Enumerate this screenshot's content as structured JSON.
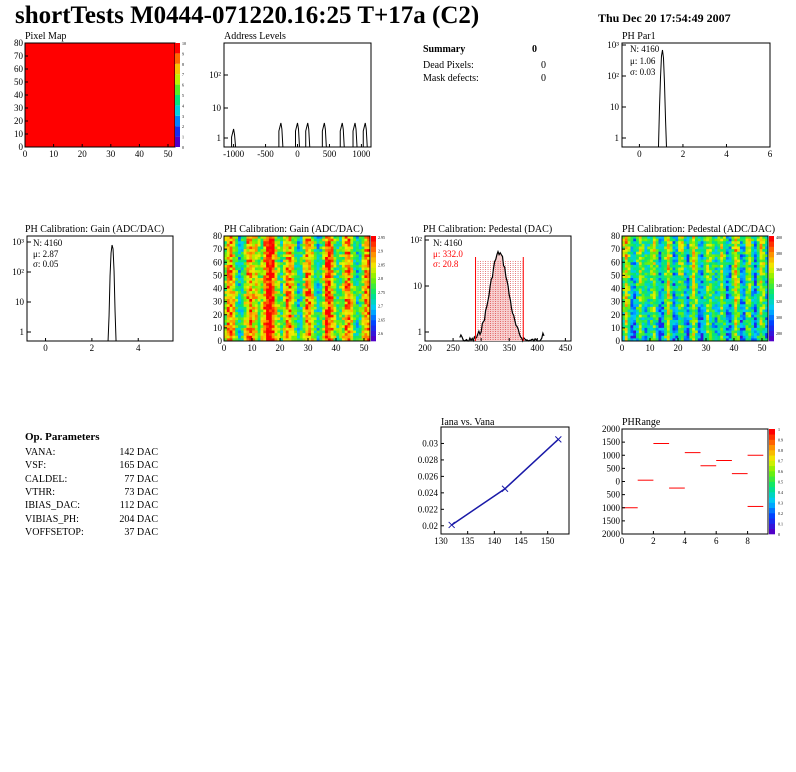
{
  "header": {
    "title": "shortTests M0444-071220.16:25 T+17a (C2)",
    "date": "Thu Dec 20 17:54:49 2007"
  },
  "summary": {
    "heading": "Summary",
    "count": "0",
    "rows": [
      {
        "label": "Dead Pixels:",
        "value": "0"
      },
      {
        "label": "Mask defects:",
        "value": "0"
      }
    ]
  },
  "op_params": {
    "heading": "Op. Parameters",
    "rows": [
      {
        "label": "VANA:",
        "value": "142 DAC"
      },
      {
        "label": "VSF:",
        "value": "165 DAC"
      },
      {
        "label": "CALDEL:",
        "value": "77 DAC"
      },
      {
        "label": "VTHR:",
        "value": "73 DAC"
      },
      {
        "label": "IBIAS_DAC:",
        "value": "112 DAC"
      },
      {
        "label": "VIBIAS_PH:",
        "value": "204 DAC"
      },
      {
        "label": "VOFFSETOP:",
        "value": "37 DAC"
      }
    ]
  },
  "chart_data": [
    {
      "type": "heatmap",
      "title": "Pixel Map",
      "xlim": [
        0,
        52
      ],
      "ylim": [
        0,
        80
      ],
      "x_ticks": [
        "0",
        "10",
        "20",
        "30",
        "40",
        "50"
      ],
      "y_ticks": [
        "0",
        "10",
        "20",
        "30",
        "40",
        "50",
        "60",
        "70",
        "80"
      ],
      "fill": "uniform",
      "colorbar_ticks": [
        "0",
        "1",
        "2",
        "3",
        "4",
        "5",
        "6",
        "7",
        "8",
        "9",
        "10"
      ]
    },
    {
      "type": "bar",
      "title": "Address Levels",
      "x_ticks": [
        "-1000",
        "-500",
        "0",
        "500",
        "1000"
      ],
      "xlim": [
        -1150,
        1150
      ],
      "y_scale": "log",
      "y_ticks": [
        "1",
        "10",
        "10²"
      ],
      "peaks_x": [
        -1000,
        -260,
        0,
        160,
        420,
        700,
        900,
        1060
      ]
    },
    {
      "type": "bar",
      "title": "PH Par1",
      "x_ticks": [
        "0",
        "2",
        "4",
        "6"
      ],
      "xlim": [
        -0.8,
        6
      ],
      "y_scale": "log",
      "y_ticks": [
        "1",
        "10",
        "10²",
        "10³"
      ],
      "stats": {
        "N": "N: 4160",
        "mu": "μ: 1.06",
        "sigma": "σ: 0.03"
      },
      "peak_x": 1.06
    },
    {
      "type": "bar",
      "title": "PH Calibration: Gain (ADC/DAC)",
      "x_ticks": [
        "0",
        "2",
        "4"
      ],
      "xlim": [
        -0.8,
        5.5
      ],
      "y_scale": "log",
      "y_ticks": [
        "1",
        "10",
        "10²",
        "10³"
      ],
      "stats": {
        "N": "N: 4160",
        "mu": "μ: 2.87",
        "sigma": "σ: 0.05"
      },
      "peak_x": 2.87
    },
    {
      "type": "heatmap",
      "title": "PH Calibration: Gain (ADC/DAC)",
      "xlim": [
        0,
        52
      ],
      "ylim": [
        0,
        80
      ],
      "x_ticks": [
        "0",
        "10",
        "20",
        "30",
        "40",
        "50"
      ],
      "y_ticks": [
        "0",
        "10",
        "20",
        "30",
        "40",
        "50",
        "60",
        "70",
        "80"
      ],
      "colorbar_ticks": [
        "2.6",
        "2.65",
        "2.7",
        "2.75",
        "2.8",
        "2.85",
        "2.9",
        "2.95"
      ]
    },
    {
      "type": "bar",
      "title": "PH Calibration: Pedestal (DAC)",
      "x_ticks": [
        "200",
        "250",
        "300",
        "350",
        "400",
        "450"
      ],
      "xlim": [
        200,
        460
      ],
      "y_scale": "log",
      "y_ticks": [
        "1",
        "10",
        "10²"
      ],
      "stats": {
        "N": "N: 4160",
        "mu": "μ: 332.0",
        "sigma": "σ: 20.8"
      },
      "cut_lines": [
        290,
        375
      ]
    },
    {
      "type": "heatmap",
      "title": "PH Calibration: Pedestal (ADC/DAC)",
      "xlim": [
        0,
        52
      ],
      "ylim": [
        0,
        80
      ],
      "x_ticks": [
        "0",
        "10",
        "20",
        "30",
        "40",
        "50"
      ],
      "y_ticks": [
        "0",
        "10",
        "20",
        "30",
        "40",
        "50",
        "60",
        "70",
        "80"
      ],
      "colorbar_ticks": [
        "280",
        "300",
        "320",
        "340",
        "360",
        "380",
        "400"
      ]
    },
    {
      "type": "line",
      "title": "Iana vs. Vana",
      "x": [
        132,
        142,
        152
      ],
      "y": [
        0.0201,
        0.0245,
        0.0305
      ],
      "xlim": [
        130,
        154
      ],
      "ylim": [
        0.019,
        0.032
      ],
      "x_ticks": [
        "130",
        "135",
        "140",
        "145",
        "150"
      ],
      "y_ticks": [
        "0.02",
        "0.022",
        "0.024",
        "0.026",
        "0.028",
        "0.03"
      ]
    },
    {
      "type": "scatter",
      "title": "PHRange",
      "x": [
        0,
        1,
        2,
        3,
        4,
        5,
        6,
        7,
        8
      ],
      "y": [
        -1000,
        50,
        1450,
        -250,
        1100,
        600,
        800,
        300,
        1000
      ],
      "extra": {
        "x": 8,
        "y": -950
      },
      "xlim": [
        0,
        9.3
      ],
      "ylim": [
        -2000,
        2000
      ],
      "x_ticks": [
        "0",
        "2",
        "4",
        "6",
        "8"
      ],
      "y_ticks": [
        "2000",
        "1500",
        "1000",
        "500",
        "0",
        "500",
        "1000",
        "1500",
        "2000"
      ],
      "colorbar_ticks": [
        "0",
        "0.1",
        "0.2",
        "0.3",
        "0.4",
        "0.5",
        "0.6",
        "0.7",
        "0.8",
        "0.9",
        "1"
      ]
    }
  ],
  "colors": {
    "red": "#ff0000",
    "hist_line": "#000000",
    "stat_red": "#ff0000",
    "line_blue": "#1a1aa8"
  }
}
